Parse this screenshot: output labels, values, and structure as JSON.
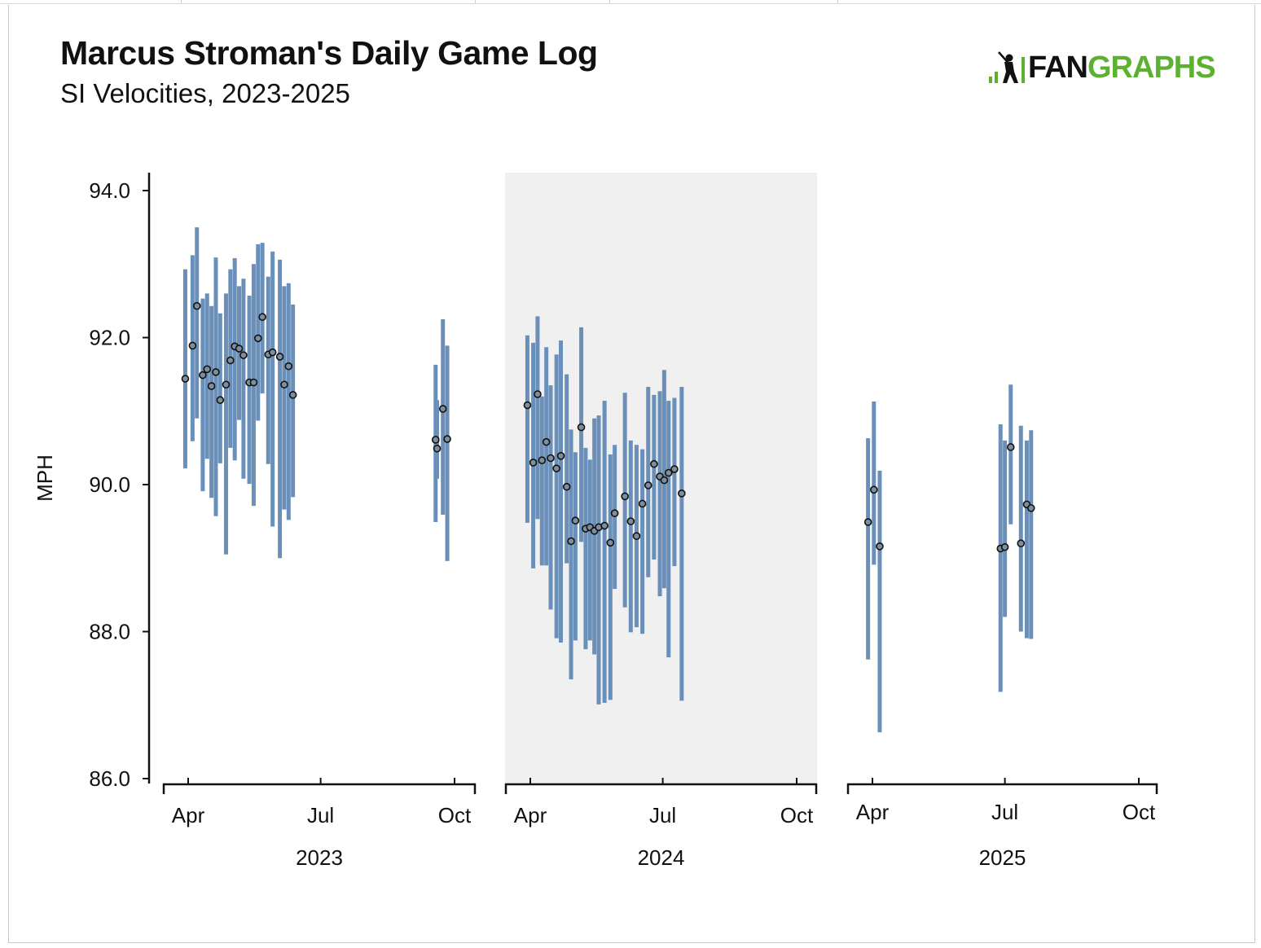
{
  "title": "Marcus Stroman's Daily Game Log",
  "subtitle": "SI Velocities, 2023-2025",
  "logo": {
    "fan": "FAN",
    "graphs": "GRAPHS",
    "color_fan": "#111111",
    "color_graphs": "#5cb230"
  },
  "colors": {
    "bar": "#6a8fb8",
    "point_fill": "#7d8e9c",
    "point_stroke": "#111111",
    "shade": "#f0f0f0"
  },
  "chart_data": {
    "type": "scatter",
    "title": "Marcus Stroman's Daily Game Log",
    "subtitle": "SI Velocities, 2023-2025",
    "ylabel": "MPH",
    "ylim": [
      86,
      94
    ],
    "yticks": [
      "94.0",
      "92.0",
      "90.0",
      "88.0",
      "86.0"
    ],
    "grid": false,
    "facets": [
      {
        "year": "2023",
        "shaded": false,
        "month_ticks": [
          "Apr",
          "Jul",
          "Oct"
        ],
        "points": [
          {
            "date": "2023-03-30",
            "avg": 91.44,
            "min": 90.22,
            "max": 92.93
          },
          {
            "date": "2023-04-04",
            "avg": 91.89,
            "min": 90.59,
            "max": 93.12
          },
          {
            "date": "2023-04-07",
            "avg": 92.43,
            "min": 90.9,
            "max": 93.5
          },
          {
            "date": "2023-04-11",
            "avg": 91.49,
            "min": 89.91,
            "max": 92.53
          },
          {
            "date": "2023-04-14",
            "avg": 91.57,
            "min": 90.35,
            "max": 92.6
          },
          {
            "date": "2023-04-17",
            "avg": 91.34,
            "min": 89.82,
            "max": 92.43
          },
          {
            "date": "2023-04-20",
            "avg": 91.53,
            "min": 89.57,
            "max": 93.09
          },
          {
            "date": "2023-04-23",
            "avg": 91.15,
            "min": 90.29,
            "max": 92.33
          },
          {
            "date": "2023-04-27",
            "avg": 91.36,
            "min": 89.05,
            "max": 92.6
          },
          {
            "date": "2023-04-30",
            "avg": 91.69,
            "min": 90.5,
            "max": 92.93
          },
          {
            "date": "2023-05-03",
            "avg": 91.88,
            "min": 90.33,
            "max": 93.08
          },
          {
            "date": "2023-05-06",
            "avg": 91.85,
            "min": 90.88,
            "max": 92.7
          },
          {
            "date": "2023-05-09",
            "avg": 91.76,
            "min": 90.08,
            "max": 92.8
          },
          {
            "date": "2023-05-13",
            "avg": 91.39,
            "min": 90.01,
            "max": 92.57
          },
          {
            "date": "2023-05-16",
            "avg": 91.39,
            "min": 89.71,
            "max": 93.0
          },
          {
            "date": "2023-05-19",
            "avg": 91.99,
            "min": 90.87,
            "max": 93.27
          },
          {
            "date": "2023-05-22",
            "avg": 92.28,
            "min": 91.24,
            "max": 93.29
          },
          {
            "date": "2023-05-26",
            "avg": 91.77,
            "min": 90.28,
            "max": 92.83
          },
          {
            "date": "2023-05-29",
            "avg": 91.8,
            "min": 89.43,
            "max": 93.17
          },
          {
            "date": "2023-06-03",
            "avg": 91.74,
            "min": 89.0,
            "max": 93.06
          },
          {
            "date": "2023-06-06",
            "avg": 91.36,
            "min": 89.66,
            "max": 92.7
          },
          {
            "date": "2023-06-09",
            "avg": 91.61,
            "min": 89.52,
            "max": 92.74
          },
          {
            "date": "2023-06-12",
            "avg": 91.22,
            "min": 89.83,
            "max": 92.45
          },
          {
            "date": "2023-09-18",
            "avg": 90.61,
            "min": 89.49,
            "max": 91.63
          },
          {
            "date": "2023-09-19",
            "avg": 90.49,
            "min": 90.08,
            "max": 91.15
          },
          {
            "date": "2023-09-23",
            "avg": 91.03,
            "min": 89.59,
            "max": 92.25
          },
          {
            "date": "2023-09-26",
            "avg": 90.62,
            "min": 88.96,
            "max": 91.89
          }
        ]
      },
      {
        "year": "2024",
        "shaded": true,
        "month_ticks": [
          "Apr",
          "Jul",
          "Oct"
        ],
        "points": [
          {
            "date": "2024-03-30",
            "avg": 91.08,
            "min": 89.48,
            "max": 92.03
          },
          {
            "date": "2024-04-03",
            "avg": 90.3,
            "min": 88.86,
            "max": 91.93
          },
          {
            "date": "2024-04-06",
            "avg": 91.23,
            "min": 89.53,
            "max": 92.29
          },
          {
            "date": "2024-04-09",
            "avg": 90.33,
            "min": 88.9,
            "max": 91.2
          },
          {
            "date": "2024-04-12",
            "avg": 90.58,
            "min": 88.9,
            "max": 91.87
          },
          {
            "date": "2024-04-15",
            "avg": 90.36,
            "min": 88.3,
            "max": 91.35
          },
          {
            "date": "2024-04-19",
            "avg": 90.22,
            "min": 87.91,
            "max": 91.77
          },
          {
            "date": "2024-04-22",
            "avg": 90.39,
            "min": 87.85,
            "max": 91.96
          },
          {
            "date": "2024-04-26",
            "avg": 89.97,
            "min": 88.93,
            "max": 91.5
          },
          {
            "date": "2024-04-29",
            "avg": 89.23,
            "min": 87.35,
            "max": 90.75
          },
          {
            "date": "2024-05-02",
            "avg": 89.51,
            "min": 87.88,
            "max": 90.44
          },
          {
            "date": "2024-05-06",
            "avg": 90.78,
            "min": 89.22,
            "max": 92.14
          },
          {
            "date": "2024-05-09",
            "avg": 89.4,
            "min": 87.76,
            "max": 90.5
          },
          {
            "date": "2024-05-12",
            "avg": 89.42,
            "min": 87.88,
            "max": 90.34
          },
          {
            "date": "2024-05-15",
            "avg": 89.37,
            "min": 87.69,
            "max": 90.9
          },
          {
            "date": "2024-05-18",
            "avg": 89.42,
            "min": 87.01,
            "max": 90.94
          },
          {
            "date": "2024-05-22",
            "avg": 89.44,
            "min": 87.03,
            "max": 91.14
          },
          {
            "date": "2024-05-26",
            "avg": 89.21,
            "min": 87.07,
            "max": 90.41
          },
          {
            "date": "2024-05-29",
            "avg": 89.61,
            "min": 88.58,
            "max": 90.54
          },
          {
            "date": "2024-06-05",
            "avg": 89.84,
            "min": 88.33,
            "max": 91.25
          },
          {
            "date": "2024-06-09",
            "avg": 89.5,
            "min": 87.99,
            "max": 90.6
          },
          {
            "date": "2024-06-13",
            "avg": 89.3,
            "min": 88.06,
            "max": 90.54
          },
          {
            "date": "2024-06-17",
            "avg": 89.74,
            "min": 87.97,
            "max": 90.48
          },
          {
            "date": "2024-06-21",
            "avg": 89.99,
            "min": 88.74,
            "max": 91.33
          },
          {
            "date": "2024-06-25",
            "avg": 90.28,
            "min": 88.98,
            "max": 91.22
          },
          {
            "date": "2024-06-29",
            "avg": 90.11,
            "min": 88.48,
            "max": 91.27
          },
          {
            "date": "2024-07-02",
            "avg": 90.06,
            "min": 88.59,
            "max": 91.56
          },
          {
            "date": "2024-07-05",
            "avg": 90.16,
            "min": 87.65,
            "max": 91.14
          },
          {
            "date": "2024-07-09",
            "avg": 90.21,
            "min": 88.89,
            "max": 91.18
          },
          {
            "date": "2024-07-14",
            "avg": 89.88,
            "min": 87.06,
            "max": 91.33
          }
        ]
      },
      {
        "year": "2025",
        "shaded": false,
        "month_ticks": [
          "Apr",
          "Jul",
          "Oct"
        ],
        "points": [
          {
            "date": "2025-03-29",
            "avg": 89.49,
            "min": 87.62,
            "max": 90.63
          },
          {
            "date": "2025-04-02",
            "avg": 89.93,
            "min": 88.91,
            "max": 91.13
          },
          {
            "date": "2025-04-06",
            "avg": 89.16,
            "min": 86.63,
            "max": 90.19
          },
          {
            "date": "2025-06-28",
            "avg": 89.13,
            "min": 87.18,
            "max": 90.82
          },
          {
            "date": "2025-07-01",
            "avg": 89.15,
            "min": 88.2,
            "max": 90.6
          },
          {
            "date": "2025-07-05",
            "avg": 90.51,
            "min": 89.46,
            "max": 91.36
          },
          {
            "date": "2025-07-12",
            "avg": 89.2,
            "min": 88.0,
            "max": 90.8
          },
          {
            "date": "2025-07-16",
            "avg": 89.73,
            "min": 87.91,
            "max": 90.6
          },
          {
            "date": "2025-07-19",
            "avg": 89.68,
            "min": 87.9,
            "max": 90.74
          }
        ]
      }
    ]
  }
}
